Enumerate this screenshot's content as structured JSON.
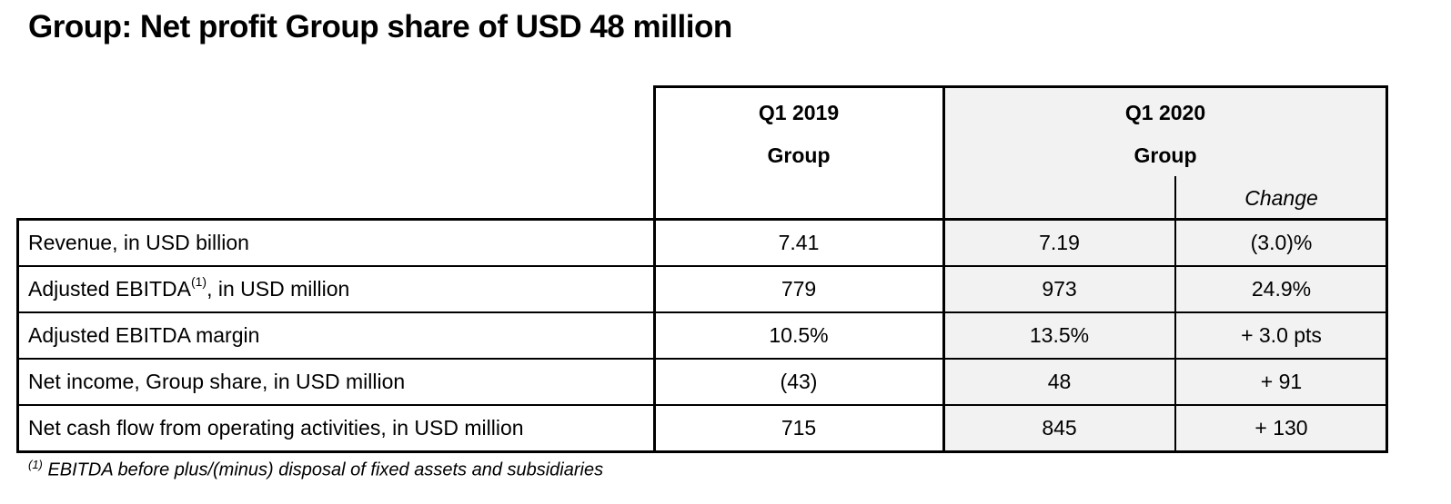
{
  "title": "Group: Net profit Group share of USD 48 million",
  "header": {
    "col1_period": "Q1 2019",
    "col1_sub": "Group",
    "col2_period": "Q1 2020",
    "col2_sub": "Group",
    "change": "Change"
  },
  "rows": [
    {
      "label": "Revenue, in USD billion",
      "sup": "",
      "label_suffix": "",
      "q1_2019": "7.41",
      "q1_2020": "7.19",
      "change": "(3.0)%"
    },
    {
      "label": "Adjusted EBITDA",
      "sup": "(1)",
      "label_suffix": ", in USD million",
      "q1_2019": "779",
      "q1_2020": "973",
      "change": "24.9%"
    },
    {
      "label": "Adjusted EBITDA margin",
      "sup": "",
      "label_suffix": "",
      "q1_2019": "10.5%",
      "q1_2020": "13.5%",
      "change": "+ 3.0 pts"
    },
    {
      "label": "Net income, Group share, in USD million",
      "sup": "",
      "label_suffix": "",
      "q1_2019": "(43)",
      "q1_2020": "48",
      "change": "+ 91"
    },
    {
      "label": "Net cash flow from operating activities, in USD million",
      "sup": "",
      "label_suffix": "",
      "q1_2019": "715",
      "q1_2020": "845",
      "change": "+ 130"
    }
  ],
  "footnote": {
    "mark": "(1)",
    "text": " EBITDA before plus/(minus) disposal of fixed assets and subsidiaries"
  },
  "colors": {
    "highlight_bg": "#f2f2f2",
    "border": "#000000"
  }
}
